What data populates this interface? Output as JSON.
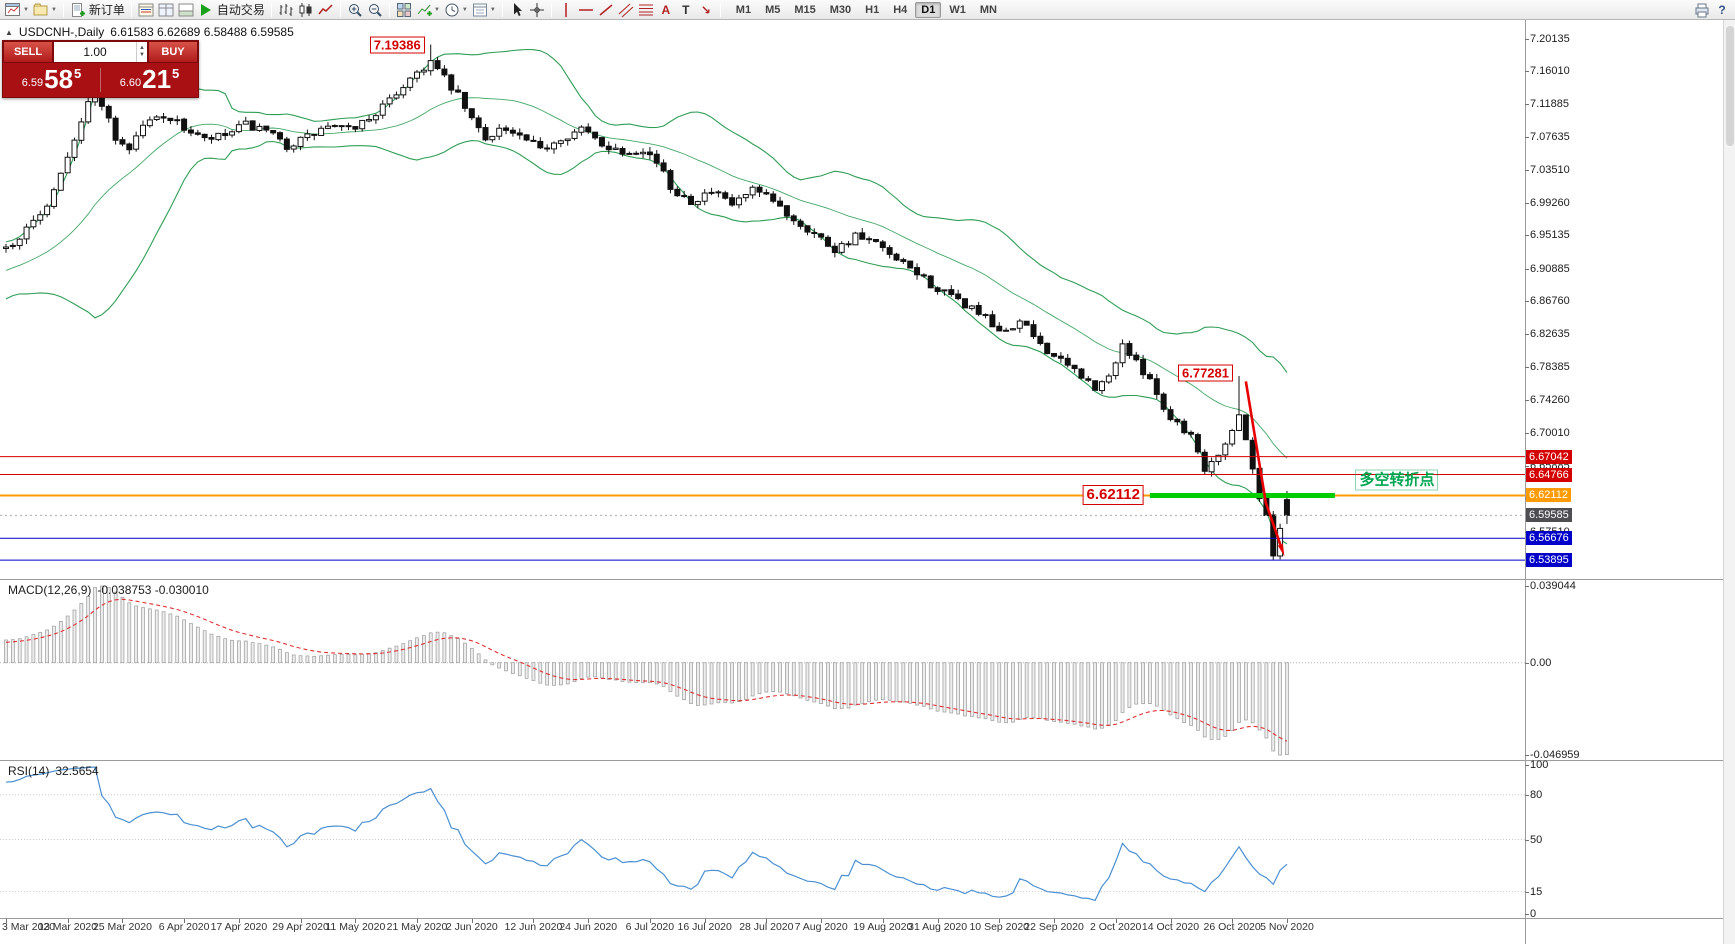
{
  "colors": {
    "bollinger": "#2f9e55",
    "candle": "#111111",
    "hline_red": "#d40000",
    "hline_orange": "#ff9a00",
    "hline_blue": "#0000c8",
    "green_segment": "#00cc00",
    "pivot_text_green": "#00a651",
    "macd_hist_fill": "#ececec",
    "macd_hist_stroke": "#9a9a9a",
    "macd_signal": "#e03030",
    "rsi_line": "#4a90d2",
    "current_badge": "#4d4d52",
    "annotation_red": "#d40000",
    "panel_red": "#a81014"
  },
  "toolbar": {
    "groups": [
      {
        "items": [
          {
            "name": "new-chart",
            "icon": "winchart",
            "dd": true
          },
          {
            "name": "chart-profiles",
            "icon": "profiles",
            "dd": true
          }
        ]
      },
      {
        "items": [
          {
            "name": "new-order",
            "icon": "neworder",
            "label": "新订单"
          }
        ]
      },
      {
        "items": [
          {
            "name": "market-watch",
            "icon": "marketwatch"
          },
          {
            "name": "data-window",
            "icon": "datawindow"
          },
          {
            "name": "terminal-window",
            "icon": "terminal"
          },
          {
            "name": "auto-trading",
            "icon": "autotrade",
            "label": "自动交易"
          }
        ]
      },
      {
        "items": [
          {
            "name": "bar-chart-mode",
            "icon": "bars"
          },
          {
            "name": "candle-chart-mode",
            "icon": "candles"
          },
          {
            "name": "line-chart-mode",
            "icon": "linechart"
          }
        ]
      },
      {
        "items": [
          {
            "name": "zoom-in",
            "icon": "zoomin"
          },
          {
            "name": "zoom-out",
            "icon": "zoomout"
          }
        ]
      },
      {
        "items": [
          {
            "name": "tile-windows",
            "icon": "tile"
          },
          {
            "name": "indicators-list",
            "icon": "indicators",
            "dd": true
          },
          {
            "name": "periods",
            "icon": "clock",
            "dd": true
          },
          {
            "name": "templates",
            "icon": "template",
            "dd": true
          }
        ]
      },
      {
        "items": [
          {
            "name": "cursor-tool",
            "icon": "cursor"
          },
          {
            "name": "crosshair-tool",
            "icon": "crosshair"
          }
        ]
      },
      {
        "items": [
          {
            "name": "vertical-line-tool",
            "icon": "vline"
          },
          {
            "name": "horizontal-line-tool",
            "icon": "hline"
          },
          {
            "name": "trendline-tool",
            "icon": "trendline"
          },
          {
            "name": "channel-tool",
            "icon": "channel"
          },
          {
            "name": "fibonacci-tool",
            "icon": "fibo"
          },
          {
            "name": "text-tool",
            "icon": "text"
          },
          {
            "name": "label-tool",
            "icon": "label"
          },
          {
            "name": "arrows-tool",
            "icon": "arrows"
          }
        ]
      }
    ],
    "timeframes": {
      "items": [
        "M1",
        "M5",
        "M15",
        "M30",
        "H1",
        "H4",
        "D1",
        "W1",
        "MN"
      ],
      "active": "D1"
    },
    "right_items": [
      {
        "name": "print",
        "icon": "print"
      },
      {
        "name": "help",
        "icon": "help"
      }
    ]
  },
  "chart_header": {
    "collapse_glyph": "▲",
    "symbol_period": "USDCNH-,Daily",
    "ohlc": "6.61583 6.62689 6.58488 6.59585"
  },
  "trade_panel": {
    "sell_label": "SELL",
    "buy_label": "BUY",
    "volume": "1.00",
    "sell": {
      "prefix": "6.59",
      "big": "58",
      "sup": "5"
    },
    "buy": {
      "prefix": "6.60",
      "big": "21",
      "sup": "5"
    }
  },
  "price_axis": {
    "ticks": [
      "7.20135",
      "7.16010",
      "7.11885",
      "7.07635",
      "7.03510",
      "6.99260",
      "6.95135",
      "6.90885",
      "6.86760",
      "6.82635",
      "6.78385",
      "6.74260",
      "6.70010",
      "6.65885",
      "6.61760",
      "6.57510",
      "6.53385"
    ]
  },
  "hlines": [
    {
      "label": "6.67042",
      "price": 6.67042,
      "color": "#d40000",
      "width": 1
    },
    {
      "label": "6.64766",
      "price": 6.64766,
      "color": "#d40000",
      "width": 1
    },
    {
      "label": "6.62112",
      "price": 6.62112,
      "color": "#ff9a00",
      "width": 2
    },
    {
      "label": "6.56676",
      "price": 6.56676,
      "color": "#0000c8",
      "width": 1
    },
    {
      "label": "6.53895",
      "price": 6.53895,
      "color": "#0000c8",
      "width": 1
    }
  ],
  "current_price": {
    "label": "6.59585",
    "value": 6.59585
  },
  "annotations": {
    "high1_label": "7.19386",
    "high1_anchor": {
      "index": 62,
      "price": 7.19386
    },
    "high2_label": "6.77281",
    "high2_anchor": {
      "index": 180,
      "price": 6.77281
    },
    "pivot_label": "6.62112",
    "pivot_anchor": {
      "index": 167,
      "price": 6.62112
    },
    "pivot_text": "多空转折点",
    "pivot_text_anchor": {
      "index": 197,
      "price": 6.6405
    },
    "green_segment": {
      "price": 6.62112,
      "from_index": 167,
      "to_index": 194
    },
    "arrow": {
      "from": {
        "index": 181,
        "price": 6.766
      },
      "to": {
        "index": 186.3,
        "price": 6.552
      }
    }
  },
  "macd": {
    "label": "MACD(12,26,9)",
    "values": "-0.038753 -0.030010",
    "scale_max": "0.039044",
    "scale_zero": "0.00",
    "scale_min": "-0.046959",
    "max": 0.039044,
    "min": -0.046959
  },
  "rsi": {
    "label": "RSI(14)",
    "value": "32.5654",
    "scale": [
      100,
      80,
      50,
      15,
      0
    ],
    "levels": [
      80,
      50,
      15
    ]
  },
  "date_axis": [
    "3 Mar 2020",
    "13 Mar 2020",
    "25 Mar 2020",
    "6 Apr 2020",
    "17 Apr 2020",
    "29 Apr 2020",
    "11 May 2020",
    "21 May 2020",
    "2 Jun 2020",
    "12 Jun 2020",
    "24 Jun 2020",
    "6 Jul 2020",
    "16 Jul 2020",
    "28 Jul 2020",
    "7 Aug 2020",
    "19 Aug 2020",
    "31 Aug 2020",
    "10 Sep 2020",
    "22 Sep 2020",
    "2 Oct 2020",
    "14 Oct 2020",
    "26 Oct 2020",
    "5 Nov 2020"
  ],
  "chart_data": {
    "type": "candlestick",
    "symbol": "USDCNH-",
    "timeframe": "Daily",
    "num_candles": 188,
    "price_range": [
      6.515,
      7.225
    ],
    "label_every_candles": 8.5,
    "bollinger": {
      "period": 20,
      "deviation": 2
    },
    "macd_params": {
      "fast": 12,
      "slow": 26,
      "signal": 9
    },
    "rsi_params": {
      "period": 14
    },
    "seed": 7,
    "warmup": 26,
    "pre_slope": 0.003,
    "noise": 0.011,
    "wick": 0.0065,
    "waypoints": [
      [
        0,
        6.935
      ],
      [
        3,
        6.958
      ],
      [
        6,
        6.992
      ],
      [
        9,
        7.055
      ],
      [
        12,
        7.118
      ],
      [
        13,
        7.158
      ],
      [
        14,
        7.12
      ],
      [
        16,
        7.075
      ],
      [
        18,
        7.062
      ],
      [
        20,
        7.092
      ],
      [
        23,
        7.105
      ],
      [
        26,
        7.088
      ],
      [
        29,
        7.072
      ],
      [
        32,
        7.078
      ],
      [
        35,
        7.092
      ],
      [
        38,
        7.082
      ],
      [
        41,
        7.065
      ],
      [
        44,
        7.076
      ],
      [
        47,
        7.09
      ],
      [
        50,
        7.085
      ],
      [
        53,
        7.1
      ],
      [
        56,
        7.122
      ],
      [
        59,
        7.152
      ],
      [
        62,
        7.172
      ],
      [
        64,
        7.15
      ],
      [
        66,
        7.128
      ],
      [
        68,
        7.098
      ],
      [
        70,
        7.075
      ],
      [
        72,
        7.088
      ],
      [
        75,
        7.076
      ],
      [
        78,
        7.06
      ],
      [
        81,
        7.076
      ],
      [
        84,
        7.086
      ],
      [
        87,
        7.068
      ],
      [
        90,
        7.058
      ],
      [
        93,
        7.062
      ],
      [
        95,
        7.045
      ],
      [
        97,
        7.012
      ],
      [
        100,
        6.996
      ],
      [
        103,
        7.006
      ],
      [
        106,
        6.99
      ],
      [
        109,
        7.008
      ],
      [
        112,
        6.994
      ],
      [
        115,
        6.972
      ],
      [
        118,
        6.954
      ],
      [
        121,
        6.934
      ],
      [
        124,
        6.95
      ],
      [
        127,
        6.94
      ],
      [
        130,
        6.918
      ],
      [
        133,
        6.904
      ],
      [
        136,
        6.882
      ],
      [
        139,
        6.868
      ],
      [
        142,
        6.854
      ],
      [
        145,
        6.826
      ],
      [
        148,
        6.842
      ],
      [
        151,
        6.814
      ],
      [
        154,
        6.79
      ],
      [
        157,
        6.774
      ],
      [
        159,
        6.754
      ],
      [
        161,
        6.772
      ],
      [
        163,
        6.814
      ],
      [
        165,
        6.788
      ],
      [
        167,
        6.772
      ],
      [
        169,
        6.73
      ],
      [
        171,
        6.714
      ],
      [
        173,
        6.698
      ],
      [
        175,
        6.656
      ],
      [
        177,
        6.676
      ],
      [
        179,
        6.704
      ],
      [
        180,
        6.722
      ],
      [
        181,
        6.696
      ],
      [
        182,
        6.656
      ],
      [
        183,
        6.616
      ],
      [
        184,
        6.598
      ],
      [
        185,
        6.548
      ],
      [
        186,
        6.576
      ],
      [
        187,
        6.596
      ]
    ],
    "overrides": [
      {
        "index": 62,
        "high": 7.19386
      },
      {
        "index": 180,
        "high": 6.77281
      },
      {
        "index": 185,
        "low": 6.5389
      },
      {
        "index": 187,
        "open": 6.61583,
        "high": 6.62689,
        "low": 6.58488,
        "close": 6.59585
      }
    ]
  }
}
